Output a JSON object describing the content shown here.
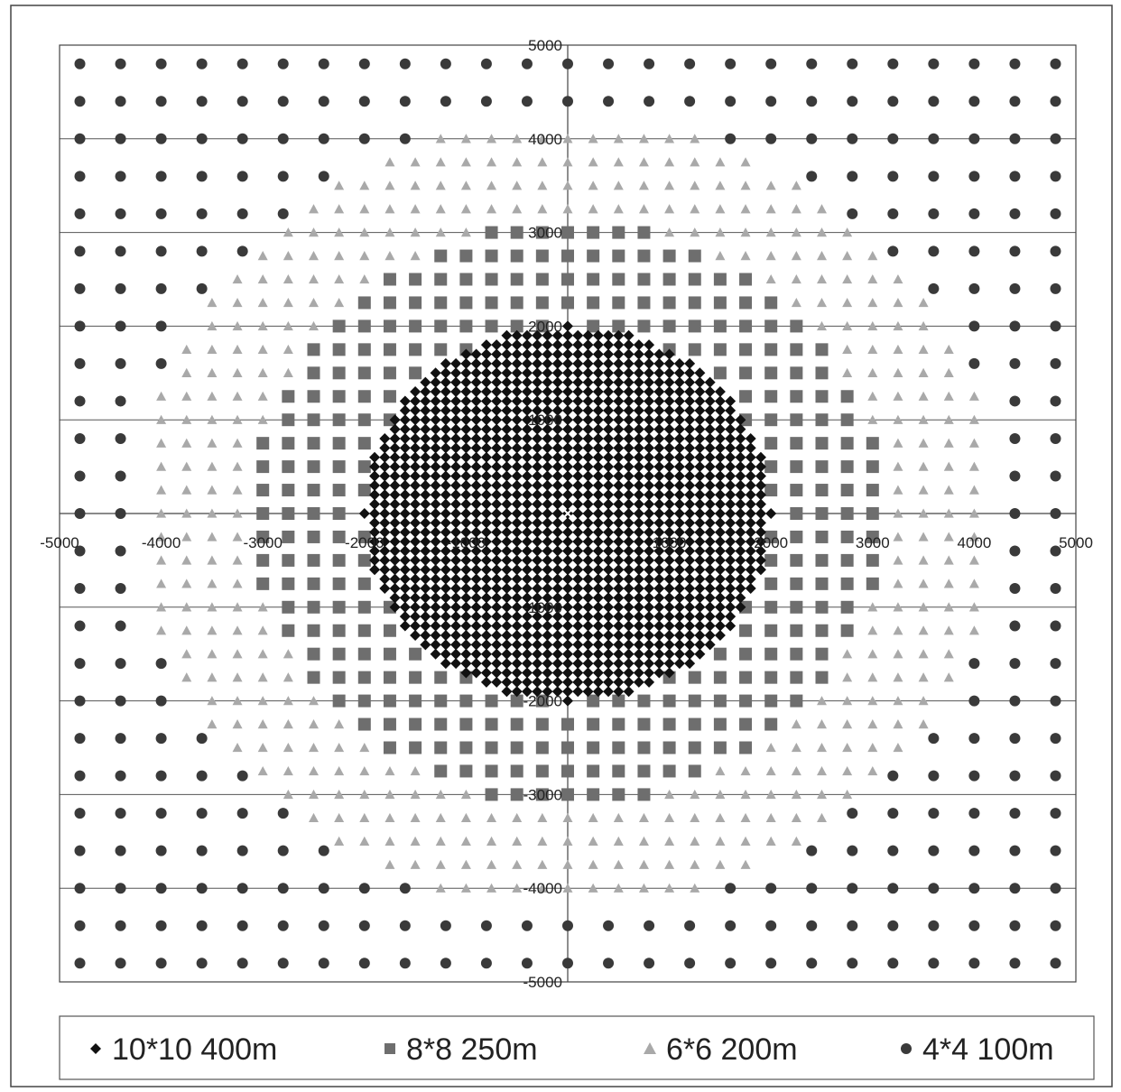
{
  "chart_data": {
    "type": "scatter",
    "xlim": [
      -5000,
      5000
    ],
    "ylim": [
      -5000,
      5000
    ],
    "grid": true,
    "legend_position": "bottom",
    "axis_ticks": {
      "x": [
        {
          "value": -5000,
          "label": "-5000"
        },
        {
          "value": -4000,
          "label": "-4000"
        },
        {
          "value": -3000,
          "label": "-3000"
        },
        {
          "value": -2000,
          "label": "-2000"
        },
        {
          "value": -1000,
          "label": "-1000"
        },
        {
          "value": 1000,
          "label": "1000"
        },
        {
          "value": 2000,
          "label": "2000"
        },
        {
          "value": 3000,
          "label": "3000"
        },
        {
          "value": 4000,
          "label": "4000"
        },
        {
          "value": 5000,
          "label": "5000"
        }
      ],
      "y": [
        {
          "value": 5000,
          "label": "5000"
        },
        {
          "value": 4000,
          "label": "4000"
        },
        {
          "value": 3000,
          "label": "3000"
        },
        {
          "value": 2000,
          "label": "2000"
        },
        {
          "value": 1000,
          "label": "1000"
        },
        {
          "value": -1000,
          "label": "-1000"
        },
        {
          "value": -2000,
          "label": "-2000"
        },
        {
          "value": -3000,
          "label": "-3000"
        },
        {
          "value": -4000,
          "label": "-4000"
        },
        {
          "value": -5000,
          "label": "-5000"
        }
      ]
    },
    "center_marker": {
      "x": 0,
      "y": 0,
      "symbol": "x"
    },
    "series": [
      {
        "name": "10*10 400m",
        "marker": "diamond",
        "color": "#111111",
        "spacing": 100,
        "region": {
          "shape": "circle",
          "radius": 2000
        }
      },
      {
        "name": "8*8 250m",
        "marker": "square",
        "color": "#6e6e6e",
        "spacing": 250,
        "region": {
          "shape": "circle",
          "radius": 3100,
          "exclude_radius": 2000
        }
      },
      {
        "name": "6*6 200m",
        "marker": "triangle",
        "color": "#a9a9a9",
        "spacing": 250,
        "region": {
          "shape": "circle",
          "radius": 4200,
          "exclude_radius": 3100
        }
      },
      {
        "name": "4*4 100m",
        "marker": "circle",
        "color": "#3a3a3a",
        "spacing": 400,
        "region": {
          "shape": "square",
          "half_width": 5000,
          "exclude_radius": 4200
        }
      }
    ]
  }
}
